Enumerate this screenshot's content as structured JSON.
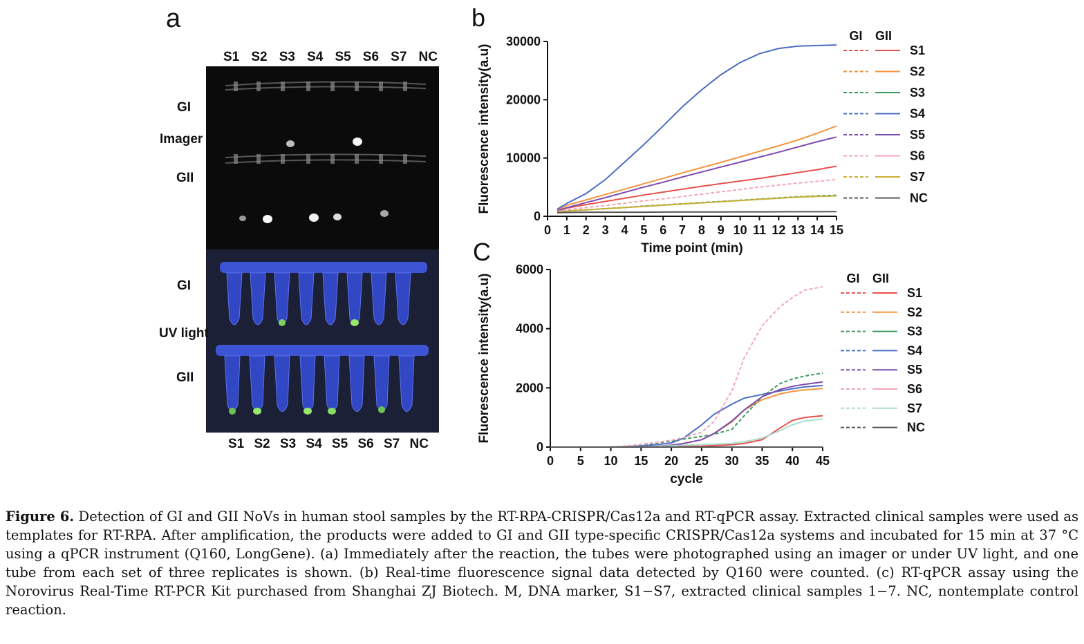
{
  "panel_a": {
    "letter": "a",
    "samples_top": [
      "S1",
      "S2",
      "S3",
      "S4",
      "S5",
      "S6",
      "S7",
      "NC"
    ],
    "samples_bottom": [
      "S1",
      "S2",
      "S3",
      "S4",
      "S5",
      "S6",
      "S7",
      "NC"
    ],
    "labels": {
      "gi_imager": "GI",
      "imager": "Imager",
      "gii_imager": "GII",
      "gi_uv": "GI",
      "uv": "UV light",
      "gii_uv": "GII"
    }
  },
  "chart_data": [
    {
      "panel": "b",
      "type": "line",
      "xlabel": "Time point (min)",
      "ylabel": "Fluorescence intensity(a.u)",
      "xlim": [
        0,
        15
      ],
      "ylim": [
        0,
        30000
      ],
      "xticks": [
        "0",
        "1",
        "2",
        "3",
        "4",
        "5",
        "6",
        "7",
        "8",
        "9",
        "10",
        "11",
        "12",
        "13",
        "14",
        "15"
      ],
      "yticks": [
        "0",
        "10000",
        "20000",
        "30000"
      ],
      "legend_headers": [
        "GI",
        "GII"
      ],
      "legend_labels": [
        "S1",
        "S2",
        "S3",
        "S4",
        "S5",
        "S6",
        "S7",
        "NC"
      ],
      "legend_placement": "right",
      "grid": false,
      "x": [
        0.5,
        1,
        2,
        3,
        4,
        5,
        6,
        7,
        8,
        9,
        10,
        11,
        12,
        13,
        14,
        15
      ],
      "series": [
        {
          "name": "S1",
          "group": "GII",
          "color": "#e8504b",
          "style": "solid",
          "values": [
            900,
            1400,
            2000,
            2550,
            3100,
            3650,
            4150,
            4650,
            5150,
            5600,
            6050,
            6500,
            7000,
            7500,
            8000,
            8600
          ]
        },
        {
          "name": "S2",
          "group": "GII",
          "color": "#f2953d",
          "style": "solid",
          "values": [
            1000,
            1900,
            2800,
            3750,
            4650,
            5600,
            6500,
            7450,
            8350,
            9250,
            10200,
            11150,
            12100,
            13100,
            14250,
            15500
          ]
        },
        {
          "name": "S3",
          "group": "GI",
          "color": "#3a9a5b",
          "style": "dashed",
          "values": [
            700,
            900,
            1100,
            1300,
            1500,
            1750,
            1950,
            2150,
            2350,
            2550,
            2750,
            2950,
            3150,
            3350,
            3500,
            3600
          ]
        },
        {
          "name": "S4",
          "group": "GII",
          "color": "#4a6cc4",
          "style": "solid",
          "values": [
            1200,
            2200,
            3900,
            6300,
            9300,
            12300,
            15500,
            18800,
            21700,
            24300,
            26400,
            27900,
            28800,
            29200,
            29300,
            29400
          ]
        },
        {
          "name": "S5",
          "group": "GII",
          "color": "#7e4bae",
          "style": "solid",
          "values": [
            900,
            1500,
            2350,
            3200,
            4100,
            5000,
            5850,
            6750,
            7600,
            8450,
            9300,
            10150,
            11000,
            11900,
            12800,
            13600
          ]
        },
        {
          "name": "S6",
          "group": "GI",
          "color": "#f2a7b8",
          "style": "dashed",
          "values": [
            800,
            1100,
            1500,
            1850,
            2250,
            2650,
            3000,
            3400,
            3800,
            4200,
            4600,
            5000,
            5350,
            5700,
            6000,
            6300
          ]
        },
        {
          "name": "S7",
          "group": "GII",
          "color": "#c9b034",
          "style": "solid",
          "values": [
            700,
            900,
            1100,
            1300,
            1500,
            1700,
            1900,
            2100,
            2300,
            2500,
            2700,
            2900,
            3100,
            3300,
            3400,
            3500
          ]
        },
        {
          "name": "NC",
          "group": "GII",
          "color": "#555555",
          "style": "solid",
          "values": [
            600,
            650,
            700,
            700,
            700,
            700,
            720,
            730,
            740,
            750,
            760,
            760,
            770,
            780,
            780,
            790
          ]
        }
      ]
    },
    {
      "panel": "C",
      "type": "line",
      "xlabel": "cycle",
      "ylabel": "Fluorescence intensity(a.u)",
      "xlim": [
        0,
        45
      ],
      "ylim": [
        0,
        6000
      ],
      "xticks": [
        "0",
        "5",
        "10",
        "15",
        "20",
        "25",
        "30",
        "35",
        "40",
        "45"
      ],
      "yticks": [
        "0",
        "2000",
        "4000",
        "6000"
      ],
      "legend_headers": [
        "GI",
        "GII"
      ],
      "legend_labels": [
        "S1",
        "S2",
        "S3",
        "S4",
        "S5",
        "S6",
        "S7",
        "NC"
      ],
      "legend_placement": "right",
      "grid": false,
      "x": [
        0,
        5,
        10,
        12,
        15,
        18,
        20,
        22,
        25,
        27,
        30,
        32,
        35,
        38,
        40,
        42,
        45
      ],
      "series": [
        {
          "name": "S1",
          "group": "GII",
          "color": "#e8504b",
          "style": "solid",
          "values": [
            0,
            0,
            0,
            0,
            5,
            10,
            15,
            20,
            30,
            50,
            80,
            120,
            250,
            650,
            900,
            1000,
            1060
          ]
        },
        {
          "name": "S2",
          "group": "GII",
          "color": "#f2953d",
          "style": "solid",
          "values": [
            0,
            0,
            0,
            0,
            10,
            30,
            60,
            120,
            250,
            450,
            850,
            1250,
            1600,
            1800,
            1880,
            1930,
            1980
          ]
        },
        {
          "name": "S3",
          "group": "GI",
          "color": "#3a9a5b",
          "style": "dashed",
          "values": [
            0,
            0,
            0,
            20,
            80,
            150,
            200,
            270,
            360,
            430,
            600,
            1050,
            1700,
            2150,
            2300,
            2400,
            2500
          ]
        },
        {
          "name": "S4",
          "group": "GII",
          "color": "#4a6cc4",
          "style": "solid",
          "values": [
            0,
            0,
            0,
            10,
            40,
            90,
            140,
            300,
            750,
            1100,
            1450,
            1650,
            1780,
            1900,
            1970,
            2030,
            2080
          ]
        },
        {
          "name": "S5",
          "group": "GII",
          "color": "#7e4bae",
          "style": "solid",
          "values": [
            0,
            0,
            0,
            0,
            10,
            30,
            60,
            120,
            250,
            450,
            880,
            1250,
            1700,
            1950,
            2050,
            2120,
            2200
          ]
        },
        {
          "name": "S6",
          "group": "GI",
          "color": "#f2a7b8",
          "style": "dashed",
          "values": [
            0,
            0,
            0,
            30,
            90,
            170,
            230,
            320,
            500,
            850,
            1900,
            3000,
            4100,
            4750,
            5050,
            5300,
            5420
          ]
        },
        {
          "name": "S7",
          "group": "GII",
          "color": "#a9dccf",
          "style": "solid",
          "values": [
            0,
            0,
            0,
            0,
            10,
            20,
            40,
            60,
            80,
            100,
            120,
            180,
            300,
            560,
            750,
            880,
            950
          ]
        },
        {
          "name": "NC",
          "group": "GII",
          "color": "#555555",
          "style": "solid",
          "values": [
            0,
            0,
            0,
            0,
            0,
            0,
            0,
            0,
            0,
            0,
            0,
            0,
            0,
            0,
            0,
            0,
            0
          ]
        }
      ]
    }
  ],
  "caption": {
    "label": "Figure 6.",
    "text": " Detection of GI and GII NoVs in human stool samples by the RT-RPA-CRISPR/Cas12a and RT-qPCR assay. Extracted clinical samples were used as templates for RT-RPA. After amplification, the products were added to GI and GII type-specific CRISPR/Cas12a systems and incubated for 15 min at 37 °C using a qPCR instrument (Q160, LongGene). (a) Immediately after the reaction, the tubes were photographed using an imager or under UV light, and one tube from each set of three replicates is shown. (b) Real-time fluorescence signal data detected by Q160 were counted. (c) RT-qPCR assay using the Norovirus Real-Time RT-PCR Kit purchased from Shanghai ZJ Biotech. M, DNA marker, S1−S7, extracted clinical samples 1−7. NC, nontemplate control reaction."
  }
}
